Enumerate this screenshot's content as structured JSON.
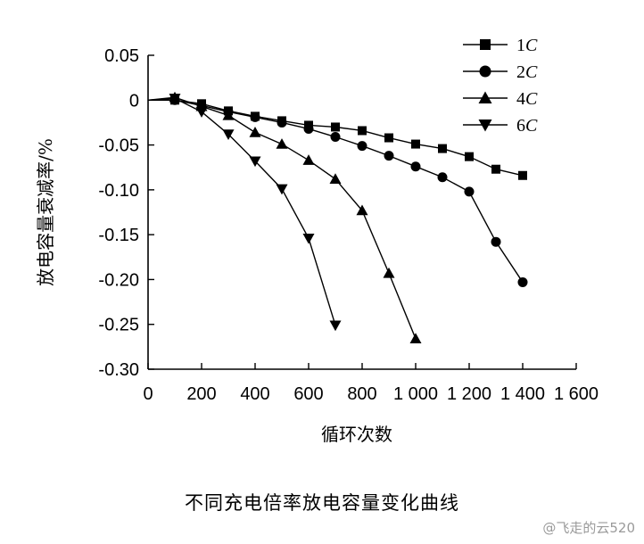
{
  "chart_data": {
    "type": "line",
    "title": "",
    "xlabel": "循环次数",
    "ylabel": "放电容量衰减率/%",
    "xlim": [
      0,
      1600
    ],
    "ylim": [
      -0.3,
      0.05
    ],
    "x_ticks": [
      0,
      200,
      400,
      600,
      800,
      1000,
      1200,
      1400,
      1600
    ],
    "x_tick_labels": [
      "0",
      "200",
      "400",
      "600",
      "800",
      "1 000",
      "1 200",
      "1 400",
      "1 600"
    ],
    "y_ticks": [
      0.05,
      0,
      -0.05,
      -0.1,
      -0.15,
      -0.2,
      -0.25,
      -0.3
    ],
    "y_tick_labels": [
      "0.05",
      "0",
      "-0.05",
      "-0.10",
      "-0.15",
      "-0.20",
      "-0.25",
      "-0.30"
    ],
    "grid": false,
    "legend_position": "top-right",
    "series": [
      {
        "name": "1C",
        "marker": "square",
        "x": [
          0,
          100,
          200,
          300,
          400,
          500,
          600,
          700,
          800,
          900,
          1000,
          1100,
          1200,
          1300,
          1400
        ],
        "y": [
          0,
          0,
          -0.004,
          -0.012,
          -0.018,
          -0.023,
          -0.028,
          -0.03,
          -0.034,
          -0.042,
          -0.049,
          -0.054,
          -0.063,
          -0.077,
          -0.084
        ]
      },
      {
        "name": "2C",
        "marker": "circle",
        "x": [
          0,
          100,
          200,
          300,
          400,
          500,
          600,
          700,
          800,
          900,
          1000,
          1100,
          1200,
          1300,
          1400
        ],
        "y": [
          0,
          0,
          -0.006,
          -0.013,
          -0.019,
          -0.025,
          -0.032,
          -0.041,
          -0.051,
          -0.062,
          -0.074,
          -0.086,
          -0.102,
          -0.158,
          -0.203
        ]
      },
      {
        "name": "4C",
        "marker": "triangle-up",
        "x": [
          0,
          100,
          200,
          300,
          400,
          500,
          600,
          700,
          800,
          900,
          1000
        ],
        "y": [
          0,
          0.003,
          -0.007,
          -0.017,
          -0.036,
          -0.049,
          -0.067,
          -0.088,
          -0.123,
          -0.193,
          -0.266
        ]
      },
      {
        "name": "6C",
        "marker": "triangle-down",
        "x": [
          0,
          100,
          200,
          300,
          400,
          500,
          600,
          700
        ],
        "y": [
          0,
          0.002,
          -0.013,
          -0.038,
          -0.068,
          -0.099,
          -0.154,
          -0.251
        ]
      }
    ]
  },
  "caption": "不同充电倍率放电容量变化曲线",
  "watermark": "@飞走的云520"
}
